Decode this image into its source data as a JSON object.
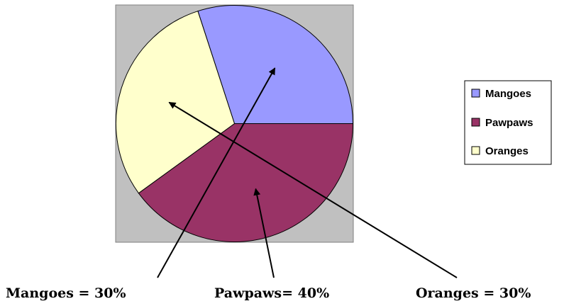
{
  "chart_data": {
    "type": "pie",
    "categories": [
      "Mangoes",
      "Pawpaws",
      "Oranges"
    ],
    "values": [
      30,
      40,
      30
    ],
    "colors": [
      "#9999ff",
      "#993366",
      "#ffffcc"
    ],
    "plot_background": "#c0c0c0",
    "legend_position": "right",
    "legend": [
      "Mangoes",
      "Pawpaws",
      "Oranges"
    ],
    "annotations": [
      {
        "category": "Mangoes",
        "text": "Mangoes = 30%"
      },
      {
        "category": "Pawpaws",
        "text": "Pawpaws= 40%"
      },
      {
        "category": "Oranges",
        "text": "Oranges = 30%"
      }
    ]
  }
}
